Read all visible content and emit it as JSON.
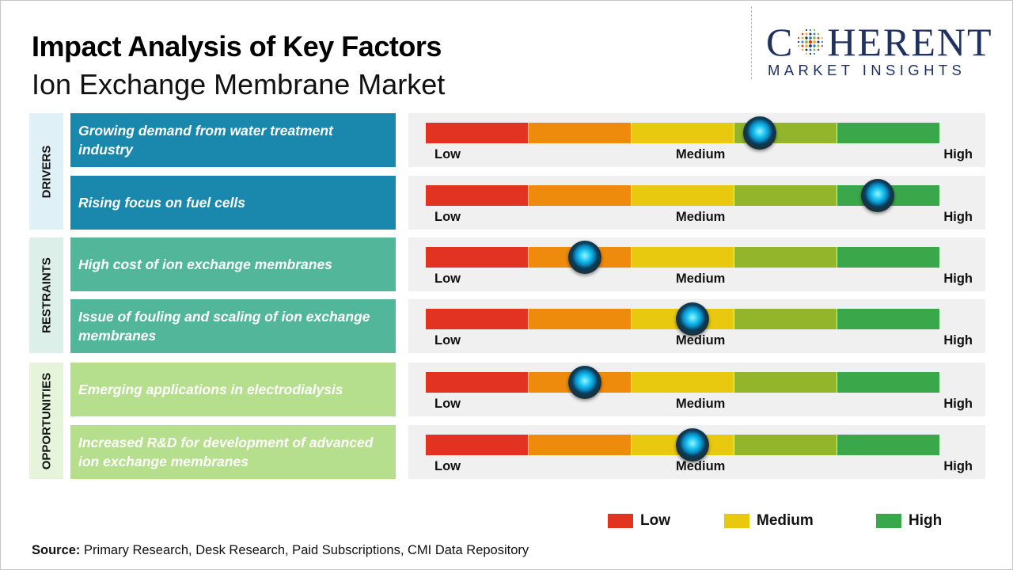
{
  "header": {
    "title": "Impact Analysis of Key Factors",
    "subtitle": "Ion Exchange Membrane Market"
  },
  "logo": {
    "main_before": "C",
    "main_after": "HERENT",
    "sub": "MARKET INSIGHTS",
    "color": "#1e3160"
  },
  "categories": [
    {
      "label": "DRIVERS",
      "bg": "#dff0f7",
      "factor_color": "#1a88ad"
    },
    {
      "label": "RESTRAINTS",
      "bg": "#dcefe8",
      "factor_color": "#52b79a"
    },
    {
      "label": "OPPORTUNITIES",
      "bg": "#e6f4dc",
      "factor_color": "#b5df8d"
    }
  ],
  "scale": {
    "low_label": "Low",
    "medium_label": "Medium",
    "high_label": "High",
    "segment_colors": [
      "#e23322",
      "#ee8a0c",
      "#e8c90f",
      "#93b52c",
      "#3aa84a"
    ]
  },
  "chart_data": {
    "type": "gauge",
    "scale": [
      "Low",
      "Medium",
      "High"
    ],
    "factors": [
      {
        "category": "DRIVERS",
        "label": "Growing demand from water treatment industry",
        "impact": 0.65
      },
      {
        "category": "DRIVERS",
        "label": "Rising focus on fuel cells",
        "impact": 0.88
      },
      {
        "category": "RESTRAINTS",
        "label": "High cost of ion exchange membranes",
        "impact": 0.31
      },
      {
        "category": "RESTRAINTS",
        "label": "Issue of fouling and scaling of ion exchange membranes",
        "impact": 0.52
      },
      {
        "category": "OPPORTUNITIES",
        "label": "Emerging applications in electrodialysis",
        "impact": 0.31
      },
      {
        "category": "OPPORTUNITIES",
        "label": "Increased R&D for development of advanced ion exchange membranes",
        "impact": 0.52
      }
    ]
  },
  "legend": [
    {
      "label": "Low",
      "color": "#e23322"
    },
    {
      "label": "Medium",
      "color": "#e8c90f"
    },
    {
      "label": "High",
      "color": "#3aa84a"
    }
  ],
  "source": {
    "prefix": "Source:",
    "text": " Primary Research, Desk Research, Paid Subscriptions, CMI Data Repository"
  }
}
